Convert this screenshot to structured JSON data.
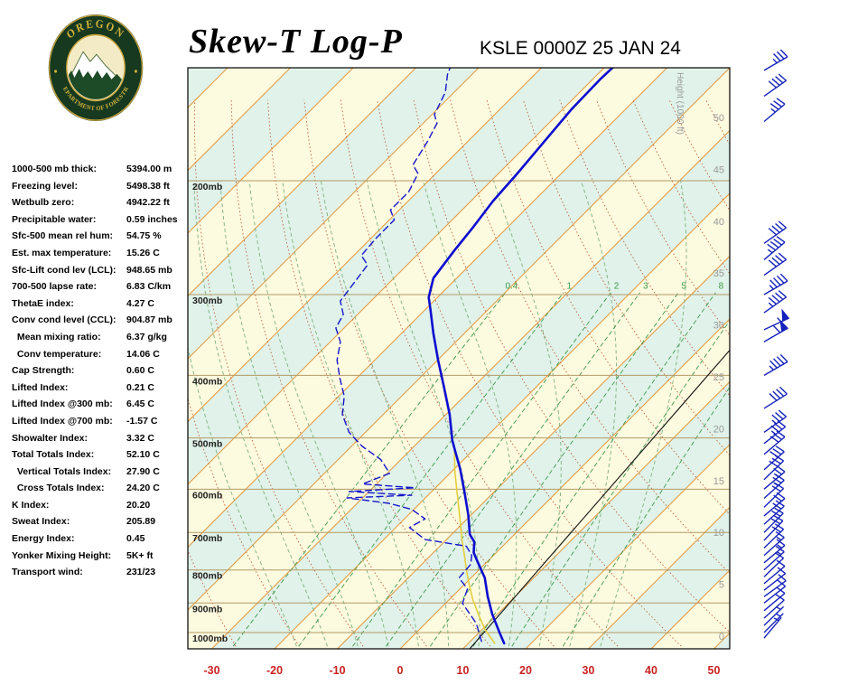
{
  "header": {
    "title": "Skew-T Log-P",
    "station_line": "KSLE 0000Z 25 JAN 24"
  },
  "logo": {
    "top_text": "OREGON",
    "bottom_text": "DEPARTMENT OF FORESTRY"
  },
  "stats": [
    {
      "label": "1000-500 mb thick:",
      "value": "5394.00 m"
    },
    {
      "label": "Freezing level:",
      "value": "5498.38 ft"
    },
    {
      "label": "Wetbulb zero:",
      "value": "4942.22 ft"
    },
    {
      "label": "Precipitable water:",
      "value": "0.59 inches"
    },
    {
      "label": "Sfc-500 mean rel hum:",
      "value": "54.75 %"
    },
    {
      "label": "Est. max temperature:",
      "value": "15.26 C"
    },
    {
      "label": "Sfc-Lift cond lev (LCL):",
      "value": "948.65 mb"
    },
    {
      "label": "700-500 lapse rate:",
      "value": "6.83 C/km"
    },
    {
      "label": "ThetaE index:",
      "value": "4.27 C"
    },
    {
      "label": "Conv cond level (CCL):",
      "value": "904.87 mb"
    },
    {
      "label": "  Mean mixing ratio:",
      "value": "6.37 g/kg"
    },
    {
      "label": "  Conv temperature:",
      "value": "14.06 C"
    },
    {
      "label": "Cap Strength:",
      "value": "0.60 C"
    },
    {
      "label": "Lifted Index:",
      "value": "0.21 C"
    },
    {
      "label": "Lifted Index @300 mb:",
      "value": "6.45 C"
    },
    {
      "label": "Lifted Index @700 mb:",
      "value": "-1.57 C"
    },
    {
      "label": "Showalter Index:",
      "value": "3.32 C"
    },
    {
      "label": "Total Totals Index:",
      "value": "52.10 C"
    },
    {
      "label": "  Vertical Totals Index:",
      "value": "27.90 C"
    },
    {
      "label": "  Cross Totals Index:",
      "value": "24.20 C"
    },
    {
      "label": "K Index:",
      "value": "20.20"
    },
    {
      "label": "Sweat Index:",
      "value": "205.89"
    },
    {
      "label": "Energy Index:",
      "value": "0.45"
    },
    {
      "label": "Yonker Mixing Height:",
      "value": "5K+ ft"
    },
    {
      "label": "Transport wind:",
      "value": "231/23"
    }
  ],
  "chart_data": {
    "type": "line",
    "title": "Skew-T Log-P sounding KSLE 0000Z 25 JAN 24",
    "x_axis": {
      "ticks": [
        -30,
        -20,
        -10,
        0,
        10,
        20,
        30,
        40,
        50
      ]
    },
    "pressure_axis": {
      "levels": [
        200,
        300,
        400,
        500,
        600,
        700,
        800,
        900,
        1000
      ],
      "labels": [
        "200mb",
        "300mb",
        "400mb",
        "500mb",
        "600mb",
        "700mb",
        "800mb",
        "900mb",
        "1000mb"
      ]
    },
    "height_axis": {
      "label": "Height (1000 ft)",
      "ticks": [
        50,
        45,
        40,
        35,
        30,
        25,
        20,
        15,
        10,
        5,
        0
      ]
    },
    "isotherms": {
      "min": -140,
      "max": 60,
      "step": 10
    },
    "dry_adiabat_thetas": [
      -30,
      -20,
      -10,
      0,
      10,
      20,
      30,
      40,
      50,
      60,
      70,
      80,
      90,
      100,
      110,
      120,
      130,
      140,
      150
    ],
    "moist_adiabat_starts": [
      -20,
      -15,
      -10,
      -5,
      0,
      5,
      10,
      15,
      20,
      25,
      30
    ],
    "mixing_ratio_lines": {
      "values": [
        0.4,
        1,
        2,
        3,
        5,
        8,
        12,
        20
      ],
      "labels": [
        "0.4",
        "1",
        "2",
        "3",
        "5",
        "8"
      ]
    },
    "series": [
      {
        "name": "temperature",
        "style": "solid",
        "color": "#0d0dd0",
        "width": 2.6,
        "points_p_t": [
          [
            1039,
            15.7
          ],
          [
            999,
            13.2
          ],
          [
            937,
            9.2
          ],
          [
            879,
            5.6
          ],
          [
            823,
            2.2
          ],
          [
            776,
            -1.6
          ],
          [
            752,
            -3.6
          ],
          [
            724,
            -5.2
          ],
          [
            705,
            -7.1
          ],
          [
            657,
            -10.5
          ],
          [
            605,
            -14.8
          ],
          [
            558,
            -19.1
          ],
          [
            524,
            -22.7
          ],
          [
            504,
            -24.9
          ],
          [
            460,
            -29.4
          ],
          [
            417,
            -34.7
          ],
          [
            379,
            -39.9
          ],
          [
            344,
            -45.0
          ],
          [
            317,
            -49.1
          ],
          [
            303,
            -51.4
          ],
          [
            283,
            -53.7
          ],
          [
            256,
            -54.8
          ],
          [
            236,
            -55.5
          ],
          [
            215,
            -56.5
          ],
          [
            195,
            -57.0
          ],
          [
            174,
            -57.8
          ],
          [
            155,
            -58.6
          ],
          [
            139,
            -58.8
          ],
          [
            131,
            -58.6
          ]
        ]
      },
      {
        "name": "dewpoint",
        "style": "dashed",
        "color": "#1515cc",
        "width": 1.4,
        "points_p_t": [
          [
            1032,
            11.8
          ],
          [
            968,
            8.1
          ],
          [
            901,
            2.7
          ],
          [
            856,
            1.2
          ],
          [
            823,
            -1.9
          ],
          [
            784,
            -2.2
          ],
          [
            759,
            -3.5
          ],
          [
            735,
            -5.8
          ],
          [
            718,
            -13.4
          ],
          [
            688,
            -17.8
          ],
          [
            667,
            -16.7
          ],
          [
            645,
            -20.3
          ],
          [
            631,
            -24.9
          ],
          [
            619,
            -32.5
          ],
          [
            613,
            -22.6
          ],
          [
            605,
            -33.2
          ],
          [
            597,
            -23.3
          ],
          [
            589,
            -32.2
          ],
          [
            567,
            -29.6
          ],
          [
            540,
            -33.2
          ],
          [
            515,
            -38.3
          ],
          [
            490,
            -42.6
          ],
          [
            460,
            -46.5
          ],
          [
            431,
            -49.1
          ],
          [
            404,
            -52.7
          ],
          [
            379,
            -56.0
          ],
          [
            355,
            -58.4
          ],
          [
            338,
            -61.3
          ],
          [
            322,
            -62.3
          ],
          [
            307,
            -64.9
          ],
          [
            288,
            -65.6
          ],
          [
            270,
            -66.3
          ],
          [
            261,
            -68.8
          ],
          [
            245,
            -69.2
          ],
          [
            230,
            -69.2
          ],
          [
            222,
            -71.4
          ],
          [
            208,
            -71.4
          ],
          [
            195,
            -72.8
          ],
          [
            189,
            -75.0
          ],
          [
            174,
            -76.4
          ],
          [
            163,
            -77.8
          ],
          [
            158,
            -79.6
          ],
          [
            146,
            -81.4
          ],
          [
            137,
            -83.9
          ],
          [
            133,
            -84.7
          ]
        ]
      },
      {
        "name": "parcel",
        "style": "solid",
        "color": "#e3cf3e",
        "width": 1.6,
        "points_p_t": [
          [
            1039,
            14.2
          ],
          [
            990,
            10.5
          ],
          [
            940,
            7.2
          ],
          [
            890,
            3.8
          ],
          [
            840,
            0.6
          ],
          [
            800,
            -2.0
          ],
          [
            760,
            -4.6
          ],
          [
            720,
            -7.4
          ],
          [
            680,
            -10.2
          ],
          [
            640,
            -13.2
          ],
          [
            600,
            -16.4
          ],
          [
            560,
            -19.8
          ],
          [
            524,
            -22.8
          ]
        ]
      }
    ],
    "reference_line": {
      "color": "#111111",
      "from_p_t": [
        1060,
        11.1
      ],
      "to_p_t": [
        361,
        4.9
      ]
    },
    "winds": {
      "color": "#1522bb",
      "barbs_p_dir_spd": [
        [
          135,
          240,
          35
        ],
        [
          148,
          235,
          40
        ],
        [
          162,
          230,
          35
        ],
        [
          250,
          235,
          40
        ],
        [
          265,
          230,
          45
        ],
        [
          280,
          235,
          40
        ],
        [
          300,
          240,
          45
        ],
        [
          320,
          235,
          45
        ],
        [
          340,
          245,
          55
        ],
        [
          355,
          240,
          60
        ],
        [
          400,
          240,
          45
        ],
        [
          450,
          238,
          40
        ],
        [
          490,
          235,
          35
        ],
        [
          510,
          232,
          35
        ],
        [
          530,
          230,
          30
        ],
        [
          560,
          228,
          30
        ],
        [
          580,
          226,
          28
        ],
        [
          600,
          230,
          25
        ],
        [
          620,
          228,
          25
        ],
        [
          640,
          226,
          22
        ],
        [
          660,
          230,
          22
        ],
        [
          680,
          228,
          20
        ],
        [
          700,
          225,
          20
        ],
        [
          720,
          224,
          18
        ],
        [
          740,
          226,
          18
        ],
        [
          760,
          228,
          15
        ],
        [
          780,
          230,
          15
        ],
        [
          800,
          228,
          15
        ],
        [
          820,
          226,
          12
        ],
        [
          840,
          230,
          12
        ],
        [
          860,
          232,
          10
        ],
        [
          880,
          234,
          10
        ],
        [
          900,
          232,
          10
        ],
        [
          925,
          230,
          8
        ],
        [
          950,
          228,
          8
        ],
        [
          975,
          226,
          5
        ],
        [
          1000,
          225,
          5
        ],
        [
          1020,
          220,
          5
        ]
      ]
    },
    "colors": {
      "band_yellow": "#FCFADF",
      "band_cyan": "#E0F2E9",
      "isotherm": "#E39A40",
      "dry_adiabat": "#C06040",
      "moist_adiabat": "#7FB07F",
      "mixing_ratio": "#3F9A4F",
      "pressure_line": "#B49A66",
      "height_text": "#999999",
      "axis_temp_text": "#CC2222",
      "pressure_text": "#222222"
    }
  }
}
